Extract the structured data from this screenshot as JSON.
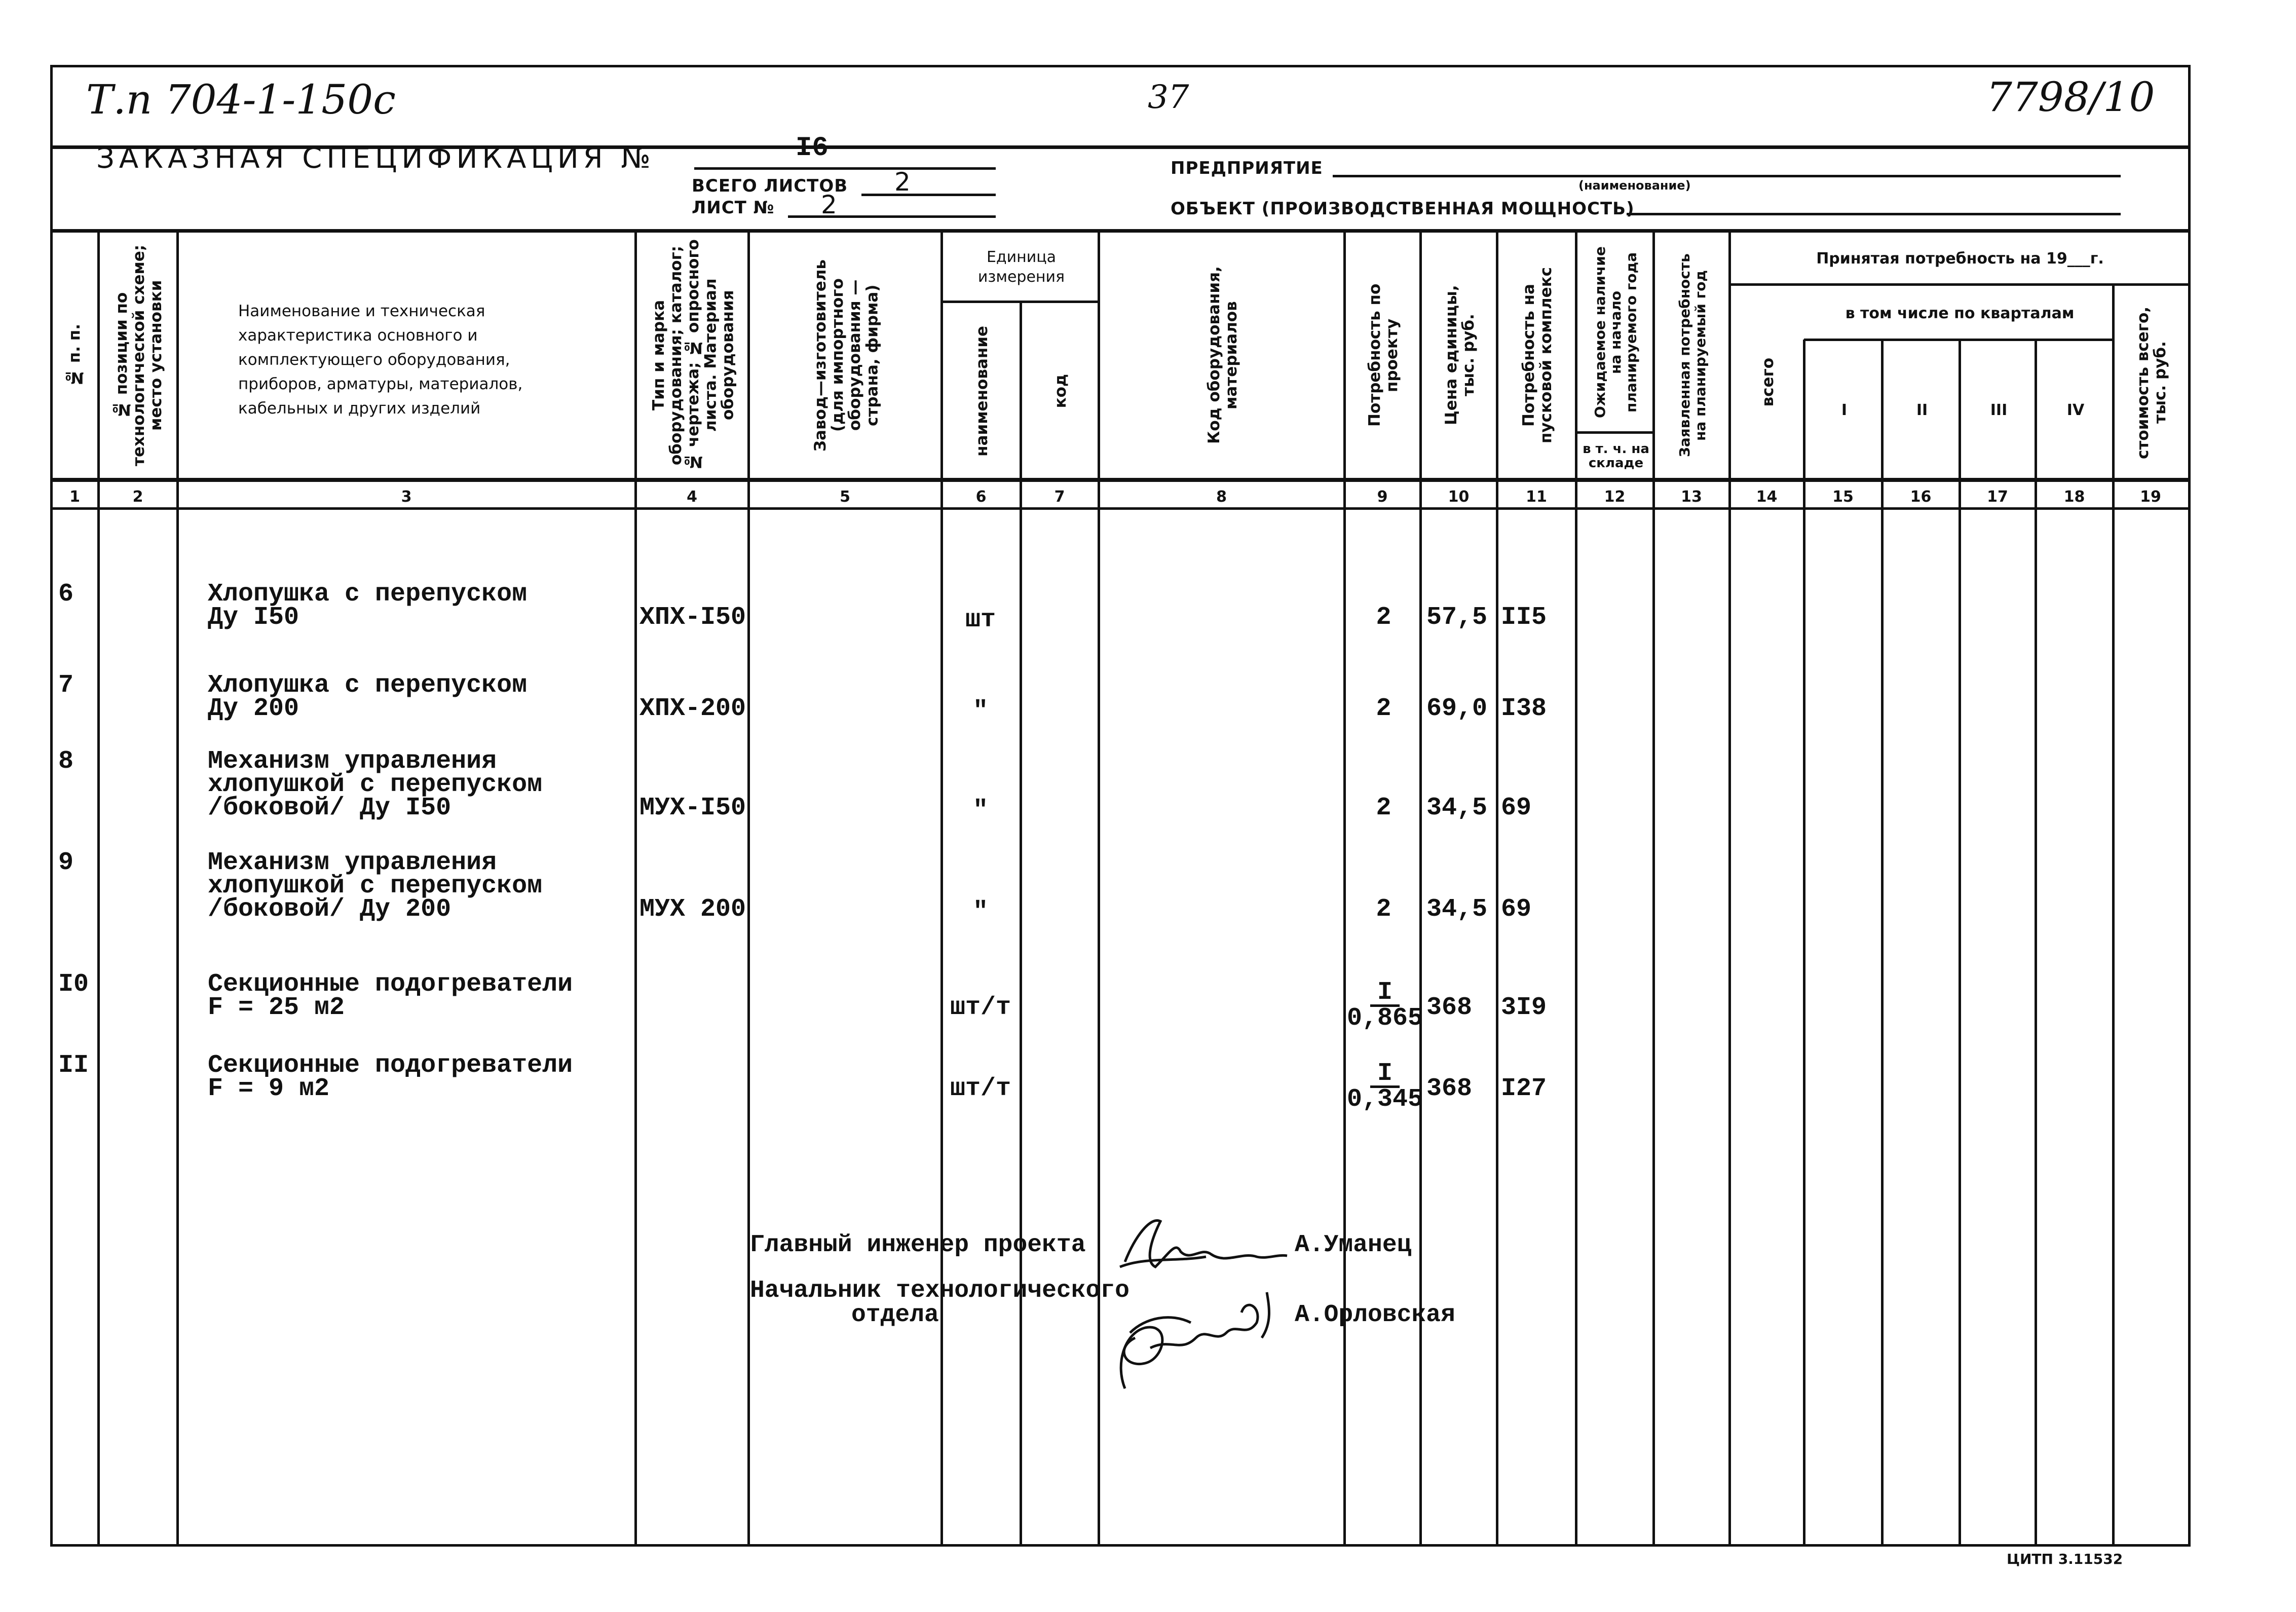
{
  "top": {
    "doc_code": "Т.п 704-1-150с",
    "page_number": "37",
    "reference": "7798/10"
  },
  "title": {
    "heading": "ЗАКАЗНАЯ СПЕЦИФИКАЦИЯ №",
    "spec_number": "I6",
    "total_sheets_label": "ВСЕГО ЛИСТОВ",
    "total_sheets": "2",
    "sheet_label": "ЛИСТ №",
    "sheet": "2",
    "enterprise_label": "ПРЕДПРИЯТИЕ",
    "enterprise_hint": "(наименование)",
    "object_label": "ОБЪЕКТ (ПРОИЗВОДСТВЕННАЯ МОЩНОСТЬ)"
  },
  "headers": {
    "c1": "№ п. п.",
    "c2": "№ позиции по технологической схеме; место установки",
    "c3": "Наименование и техническая характеристика основного и комплектующего оборудования, приборов, арматуры, материалов, кабельных и других изделий",
    "c4": "Тип и марка оборудования; каталог; № чертежа; № опросного листа. Материал оборудования",
    "c5": "Завод—изготовитель (для импортного оборудования —страна, фирма)",
    "unit_group": "Единица измерения",
    "c6": "наименование",
    "c7": "код",
    "c8": "Код оборудования, материалов",
    "c9": "Потребность по проекту",
    "c10": "Цена единицы, тыс. руб.",
    "c11": "Потребность на пусковой комплекс",
    "c12": "Ожидаемое наличие на начало планируемого года",
    "c12b": "в т. ч. на складе",
    "c13": "Заявленная потребность на планируемый год",
    "accepted_group": "Принятая потребность на 19___г.",
    "c14": "всего",
    "quarters_group": "в том числе по кварталам",
    "c15": "I",
    "c16": "II",
    "c17": "III",
    "c18": "IV",
    "c19": "стоимость всего, тыс. руб."
  },
  "column_numbers": [
    "1",
    "2",
    "3",
    "4",
    "5",
    "6",
    "7",
    "8",
    "9",
    "10",
    "11",
    "12",
    "13",
    "14",
    "15",
    "16",
    "17",
    "18",
    "19"
  ],
  "rows": [
    {
      "no": "6",
      "name": "Хлопушка с перепуском\nДу I50",
      "type": "ХПХ-I50",
      "unit": "шт",
      "qty": "2",
      "qty_den": "",
      "price": "57,5",
      "launch": "II5"
    },
    {
      "no": "7",
      "name": "Хлопушка с перепуском\nДу 200",
      "type": "ХПХ-200",
      "unit": "\"",
      "qty": "2",
      "qty_den": "",
      "price": "69,0",
      "launch": "I38"
    },
    {
      "no": "8",
      "name": "Механизм управления\nхлопушкой с перепуском\n/боковой/ Ду I50",
      "type": "МУХ-I50",
      "unit": "\"",
      "qty": "2",
      "qty_den": "",
      "price": "34,5",
      "launch": "69"
    },
    {
      "no": "9",
      "name": "Механизм управления\nхлопушкой с перепуском\n/боковой/ Ду 200",
      "type": "МУХ 200",
      "unit": "\"",
      "qty": "2",
      "qty_den": "",
      "price": "34,5",
      "launch": "69"
    },
    {
      "no": "I0",
      "name": "Секционные подогреватели\n F = 25 м2",
      "type": "",
      "unit": "шт/т",
      "qty": "I",
      "qty_den": "0,865",
      "price": "368",
      "launch": "3I9"
    },
    {
      "no": "II",
      "name": "Секционные подогреватели\n F = 9 м2",
      "type": "",
      "unit": "шт/т",
      "qty": "I",
      "qty_den": "0,345",
      "price": "368",
      "launch": "I27"
    }
  ],
  "signatures": {
    "chief_engineer_title": "Главный инженер проекта",
    "chief_engineer_name": "А.Уманец",
    "dept_head_title_1": "Начальник технологического",
    "dept_head_title_2": "отдела",
    "dept_head_name": "А.Орловская"
  },
  "footer": {
    "print_code": "ЦИТП 3.11532"
  }
}
